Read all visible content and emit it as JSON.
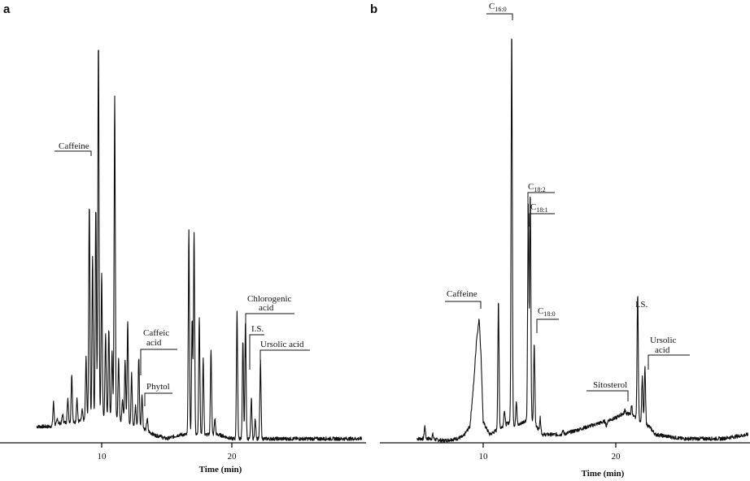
{
  "chart_data": [
    {
      "type": "line",
      "panel": "a",
      "xlabel": "Time (min)",
      "x_ticks": [
        10,
        20
      ],
      "xlim": [
        4.5,
        30
      ],
      "ylim": [
        0,
        100
      ],
      "baseline_points": [
        [
          5.0,
          4
        ],
        [
          6.0,
          4
        ],
        [
          7.0,
          5
        ],
        [
          8.0,
          5
        ],
        [
          9.0,
          6
        ],
        [
          10.0,
          7
        ],
        [
          11.0,
          6
        ],
        [
          12.0,
          5
        ],
        [
          13.0,
          4
        ],
        [
          14.0,
          2
        ],
        [
          15.0,
          1
        ],
        [
          16.0,
          2
        ],
        [
          17.0,
          2
        ],
        [
          18.0,
          2
        ],
        [
          19.0,
          2
        ],
        [
          20.0,
          1
        ],
        [
          21.0,
          1
        ],
        [
          22.0,
          1
        ],
        [
          23.0,
          1
        ],
        [
          24.0,
          1
        ],
        [
          25.0,
          1
        ],
        [
          26.0,
          1
        ],
        [
          27.0,
          1
        ],
        [
          28.0,
          1
        ],
        [
          29.0,
          1
        ],
        [
          30.0,
          1
        ]
      ],
      "peaks": [
        {
          "x": 5.0,
          "h": 4
        },
        {
          "x": 6.3,
          "h": 10
        },
        {
          "x": 6.6,
          "h": 6
        },
        {
          "x": 7.0,
          "h": 7
        },
        {
          "x": 7.4,
          "h": 11
        },
        {
          "x": 7.7,
          "h": 17
        },
        {
          "x": 8.1,
          "h": 11
        },
        {
          "x": 8.5,
          "h": 8
        },
        {
          "x": 8.8,
          "h": 21
        },
        {
          "x": 9.05,
          "h": 59
        },
        {
          "x": 9.3,
          "h": 46
        },
        {
          "x": 9.55,
          "h": 58
        },
        {
          "x": 9.75,
          "h": 99
        },
        {
          "x": 10.0,
          "h": 42
        },
        {
          "x": 10.3,
          "h": 27
        },
        {
          "x": 10.55,
          "h": 28
        },
        {
          "x": 10.8,
          "h": 23
        },
        {
          "x": 11.0,
          "h": 85
        },
        {
          "x": 11.3,
          "h": 21
        },
        {
          "x": 11.6,
          "h": 11
        },
        {
          "x": 11.8,
          "h": 20
        },
        {
          "x": 12.0,
          "h": 30
        },
        {
          "x": 12.3,
          "h": 17
        },
        {
          "x": 12.6,
          "h": 9
        },
        {
          "x": 12.85,
          "h": 21
        },
        {
          "x": 13.1,
          "h": 12
        },
        {
          "x": 13.5,
          "h": 6
        },
        {
          "x": 14.5,
          "h": 2
        },
        {
          "x": 16.7,
          "h": 52
        },
        {
          "x": 16.95,
          "h": 30
        },
        {
          "x": 17.1,
          "h": 52
        },
        {
          "x": 17.5,
          "h": 31
        },
        {
          "x": 17.8,
          "h": 21
        },
        {
          "x": 18.4,
          "h": 23
        },
        {
          "x": 18.7,
          "h": 6
        },
        {
          "x": 20.4,
          "h": 32
        },
        {
          "x": 20.85,
          "h": 25
        },
        {
          "x": 21.05,
          "h": 30
        },
        {
          "x": 21.5,
          "h": 11
        },
        {
          "x": 21.8,
          "h": 6
        },
        {
          "x": 22.2,
          "h": 20
        }
      ],
      "annotations": [
        {
          "text": "Caffeine",
          "x": 9.0,
          "y": 71
        },
        {
          "text": "Caffeic acid",
          "x": 12.8,
          "y": 23
        },
        {
          "text": "Phytol",
          "x": 13.1,
          "y": 12
        },
        {
          "text": "Chlorogenic acid",
          "x": 21.2,
          "y": 31
        },
        {
          "text": "I.S.",
          "x": 21.4,
          "y": 26
        },
        {
          "text": "Ursolic acid",
          "x": 22.2,
          "y": 23
        }
      ]
    },
    {
      "type": "line",
      "panel": "b",
      "xlabel": "Time (min)",
      "x_ticks": [
        10,
        20
      ],
      "xlim": [
        4.5,
        30
      ],
      "ylim": [
        0,
        100
      ],
      "baseline_points": [
        [
          5.0,
          1
        ],
        [
          6.0,
          1
        ],
        [
          7.0,
          0.5
        ],
        [
          8.0,
          1
        ],
        [
          8.5,
          1.5
        ],
        [
          9.0,
          4
        ],
        [
          9.3,
          15
        ],
        [
          9.5,
          25
        ],
        [
          9.7,
          30
        ],
        [
          9.85,
          20
        ],
        [
          10.0,
          5
        ],
        [
          10.5,
          2
        ],
        [
          11.0,
          3
        ],
        [
          11.5,
          4
        ],
        [
          12.0,
          5
        ],
        [
          12.5,
          4
        ],
        [
          13.0,
          5
        ],
        [
          13.5,
          6
        ],
        [
          14.0,
          4
        ],
        [
          14.5,
          2
        ],
        [
          15.0,
          2
        ],
        [
          16.0,
          2
        ],
        [
          17.0,
          3
        ],
        [
          18.0,
          4
        ],
        [
          19.0,
          5
        ],
        [
          20.0,
          6
        ],
        [
          20.5,
          7
        ],
        [
          21.0,
          7
        ],
        [
          21.5,
          6
        ],
        [
          22.0,
          5
        ],
        [
          22.5,
          4
        ],
        [
          23.0,
          2
        ],
        [
          24.0,
          1.5
        ],
        [
          25.0,
          1
        ],
        [
          26.0,
          1
        ],
        [
          27.0,
          1
        ],
        [
          28.0,
          1
        ],
        [
          29.0,
          1.5
        ],
        [
          30.0,
          2
        ]
      ],
      "peaks": [
        {
          "x": 5.6,
          "h": 4
        },
        {
          "x": 6.2,
          "h": 2
        },
        {
          "x": 11.15,
          "h": 34
        },
        {
          "x": 11.6,
          "h": 8
        },
        {
          "x": 12.15,
          "h": 100
        },
        {
          "x": 12.5,
          "h": 10
        },
        {
          "x": 13.4,
          "h": 57
        },
        {
          "x": 13.55,
          "h": 60
        },
        {
          "x": 13.85,
          "h": 24
        },
        {
          "x": 14.3,
          "h": 6
        },
        {
          "x": 16.0,
          "h": 3
        },
        {
          "x": 18.0,
          "h": 4
        },
        {
          "x": 19.3,
          "h": 4
        },
        {
          "x": 20.7,
          "h": 8
        },
        {
          "x": 21.2,
          "h": 9
        },
        {
          "x": 21.65,
          "h": 36
        },
        {
          "x": 22.0,
          "h": 16
        },
        {
          "x": 22.2,
          "h": 18
        }
      ],
      "annotations": [
        {
          "text": "Caffeine",
          "x": 9.7,
          "y": 34
        },
        {
          "text": "C",
          "sub": "16:0",
          "x": 12.15,
          "y": 104
        },
        {
          "text": "C",
          "sub": "18:2",
          "x": 13.35,
          "y": 58
        },
        {
          "text": "C",
          "sub": "18:1",
          "x": 13.55,
          "y": 54
        },
        {
          "text": "C",
          "sub": "18:0",
          "x": 13.85,
          "y": 29
        },
        {
          "text": "Sitosterol",
          "x": 20.6,
          "y": 11
        },
        {
          "text": "I.S.",
          "x": 21.65,
          "y": 38
        },
        {
          "text": "Ursolic acid",
          "x": 22.2,
          "y": 20
        }
      ]
    }
  ],
  "panels": [
    {
      "letter": "a",
      "xlabel": "Time (min)",
      "tick_labels": [
        "10",
        "20"
      ]
    },
    {
      "letter": "b",
      "xlabel": "Time (min)",
      "tick_labels": [
        "10",
        "20"
      ]
    }
  ]
}
